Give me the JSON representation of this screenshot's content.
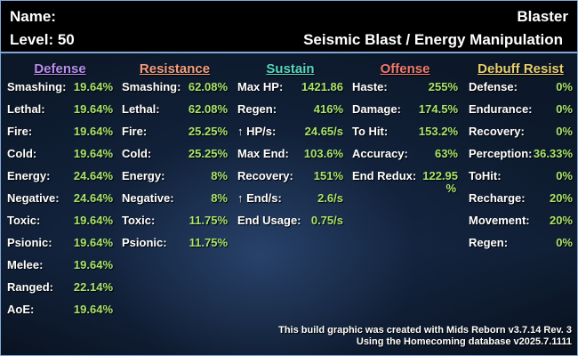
{
  "header": {
    "name_label": "Name:",
    "level_label": "Level: 50",
    "archetype": "Blaster",
    "powersets": "Seismic Blast / Energy Manipulation"
  },
  "colors": {
    "defense": "#b98ef0",
    "resistance": "#f2a080",
    "sustain": "#58d8c0",
    "offense": "#f07a70",
    "debuff_resist": "#e8d070",
    "value": "#a9e46b"
  },
  "columns": {
    "defense": {
      "title": "Defense",
      "rows": [
        {
          "label": "Smashing:",
          "value": "19.64%"
        },
        {
          "label": "Lethal:",
          "value": "19.64%"
        },
        {
          "label": "Fire:",
          "value": "19.64%"
        },
        {
          "label": "Cold:",
          "value": "19.64%"
        },
        {
          "label": "Energy:",
          "value": "24.64%"
        },
        {
          "label": "Negative:",
          "value": "24.64%"
        },
        {
          "label": "Toxic:",
          "value": "19.64%"
        },
        {
          "label": "Psionic:",
          "value": "19.64%"
        },
        {
          "label": "Melee:",
          "value": "19.64%"
        },
        {
          "label": "Ranged:",
          "value": "22.14%"
        },
        {
          "label": "AoE:",
          "value": "19.64%"
        }
      ]
    },
    "resistance": {
      "title": "Resistance",
      "rows": [
        {
          "label": "Smashing:",
          "value": "62.08%"
        },
        {
          "label": "Lethal:",
          "value": "62.08%"
        },
        {
          "label": "Fire:",
          "value": "25.25%"
        },
        {
          "label": "Cold:",
          "value": "25.25%"
        },
        {
          "label": "Energy:",
          "value": "8%"
        },
        {
          "label": "Negative:",
          "value": "8%"
        },
        {
          "label": "Toxic:",
          "value": "11.75%"
        },
        {
          "label": "Psionic:",
          "value": "11.75%"
        }
      ]
    },
    "sustain": {
      "title": "Sustain",
      "rows": [
        {
          "label": "Max HP:",
          "value": "1421.86"
        },
        {
          "label": "Regen:",
          "value": "416%"
        },
        {
          "label": "↑ HP/s:",
          "value": "24.65/s"
        },
        {
          "label": "Max End:",
          "value": "103.6%"
        },
        {
          "label": "Recovery:",
          "value": "151%"
        },
        {
          "label": "↑ End/s:",
          "value": "2.6/s"
        },
        {
          "label": "End Usage:",
          "value": "0.75/s"
        }
      ]
    },
    "offense": {
      "title": "Offense",
      "rows": [
        {
          "label": "Haste:",
          "value": "255%"
        },
        {
          "label": "Damage:",
          "value": "174.5%"
        },
        {
          "label": "To Hit:",
          "value": "153.2%"
        },
        {
          "label": "Accuracy:",
          "value": "63%"
        },
        {
          "label": "End Redux:",
          "value": "122.95"
        }
      ],
      "end_redux_suffix": "%"
    },
    "debuff_resist": {
      "title": "Debuff Resist",
      "rows": [
        {
          "label": "Defense:",
          "value": "0%"
        },
        {
          "label": "Endurance:",
          "value": "0%"
        },
        {
          "label": "Recovery:",
          "value": "0%"
        },
        {
          "label": "Perception:",
          "value": "36.33%"
        },
        {
          "label": "ToHit:",
          "value": "0%"
        },
        {
          "label": "Recharge:",
          "value": "20%"
        },
        {
          "label": "Movement:",
          "value": "20%"
        },
        {
          "label": "Regen:",
          "value": "0%"
        }
      ]
    }
  },
  "footer": {
    "line1": "This build graphic was created with Mids Reborn v3.7.14 Rev. 3",
    "line2": "Using the Homecoming database v2025.7.1111"
  }
}
